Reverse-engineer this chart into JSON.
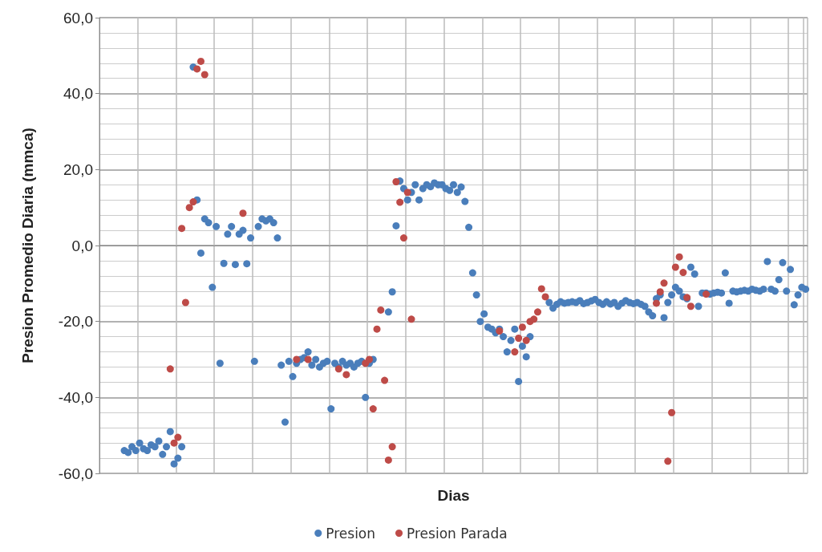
{
  "chart_data": {
    "type": "scatter",
    "xlabel": "Dias",
    "ylabel": "Presion Promedio Diaria (mmca)",
    "categories": [
      null,
      null,
      null,
      null,
      null,
      null,
      null,
      null,
      null,
      null,
      null,
      null,
      null,
      null,
      null,
      null,
      null,
      null,
      null,
      null,
      null,
      null,
      null,
      null,
      null,
      null,
      null,
      null,
      null,
      null,
      null,
      null,
      null,
      null,
      null,
      null,
      null,
      null,
      null,
      null,
      null,
      null,
      null,
      null,
      null,
      null,
      null,
      null,
      null,
      null,
      null,
      null,
      null,
      null,
      null,
      null,
      null,
      null,
      null,
      null,
      null,
      null,
      null,
      null,
      null,
      null,
      null,
      null,
      null,
      null,
      null,
      null,
      null,
      null,
      null,
      null,
      null,
      null,
      null,
      null,
      null,
      null,
      null,
      null,
      null,
      null,
      null,
      null,
      null,
      null,
      null,
      null,
      null,
      null,
      null,
      null,
      null,
      null,
      null,
      null,
      null,
      null,
      null,
      null,
      null,
      null,
      null,
      null,
      null,
      null,
      null,
      null,
      null,
      null,
      null,
      null,
      null,
      null,
      null,
      null,
      null,
      null,
      null,
      null,
      null,
      null,
      null,
      null,
      null,
      null,
      null,
      null,
      null,
      null,
      null,
      null,
      null,
      null,
      null,
      null,
      null,
      null,
      null,
      null,
      null,
      null,
      null,
      null,
      null,
      null,
      null,
      null,
      null,
      null,
      null,
      null,
      null,
      null,
      null,
      null,
      null,
      null,
      null,
      null,
      null,
      null,
      null,
      null,
      null,
      null,
      null,
      null,
      null,
      null,
      null,
      null,
      null,
      null,
      null,
      null,
      null,
      null,
      null,
      null,
      null
    ],
    "series": [
      {
        "name": "Presion",
        "color": "#4a7ebb",
        "values": [
          null,
          null,
          null,
          null,
          null,
          null,
          -54,
          -54.5,
          -53,
          -54,
          -52,
          -53.5,
          -54,
          -52.5,
          -53,
          -51.5,
          -55,
          -53,
          -49,
          -57.5,
          -56,
          -53,
          null,
          null,
          47,
          12,
          -2,
          7,
          6,
          -11,
          5,
          -31,
          -4.7,
          3,
          5,
          -5,
          3,
          4,
          -4.8,
          2,
          -30.5,
          5,
          7,
          6.5,
          7,
          6,
          2,
          -31.5,
          -46.5,
          -30.5,
          -34.5,
          -31,
          -30,
          -29.5,
          -28,
          -31.5,
          -30,
          -32,
          -31,
          -30.5,
          -43,
          -31,
          -32,
          -30.5,
          -31.5,
          -31,
          -32,
          -31,
          -30.5,
          -40,
          -31,
          -30,
          null,
          null,
          null,
          -17.5,
          -12.2,
          5.2,
          17,
          15,
          12,
          14,
          16,
          12,
          15,
          16,
          15.5,
          16.5,
          16,
          16,
          15,
          14.5,
          16,
          14,
          15.4,
          11.6,
          4.8,
          -7.2,
          -13,
          -20,
          -18,
          -21.5,
          -22,
          -23,
          -22,
          -24,
          -28,
          -25,
          -22,
          -35.8,
          -26.5,
          -29.3,
          -24,
          null,
          null,
          null,
          null,
          -15,
          -16.5,
          -15.5,
          -14.8,
          -15.2,
          -15,
          -14.8,
          -15,
          -14.5,
          -15.3,
          -15,
          -14.6,
          -14.2,
          -15,
          -15.5,
          -14.8,
          -15.4,
          -15,
          -16,
          -15.2,
          -14.5,
          -15,
          -15.3,
          -15,
          -15.5,
          -16,
          -17.5,
          -18.5,
          -14,
          -13,
          -19,
          -15,
          -13,
          -11,
          -12,
          -13.5,
          -14,
          -5.7,
          -7.5,
          -16,
          -12.5,
          -12.5,
          -12.8,
          -12.5,
          -12.3,
          -12.5,
          -7.2,
          -15.2,
          -12,
          -12.2,
          -12,
          -11.8,
          -12,
          -11.5,
          -11.8,
          -12,
          -11.5,
          -4.2,
          -11.5,
          -12,
          -9,
          -4.5,
          -12,
          -6.3,
          -15.6,
          -13,
          -11,
          -11.5
        ]
      },
      {
        "name": "Presion Parada",
        "color": "#be4b48",
        "values": [
          null,
          null,
          null,
          null,
          null,
          null,
          null,
          null,
          null,
          null,
          null,
          null,
          null,
          null,
          null,
          null,
          null,
          null,
          -32.5,
          -52,
          -50.5,
          4.5,
          -15,
          10,
          11.5,
          46.5,
          48.5,
          45,
          null,
          null,
          null,
          null,
          null,
          null,
          null,
          null,
          null,
          8.5,
          null,
          null,
          null,
          null,
          null,
          null,
          null,
          null,
          null,
          null,
          null,
          null,
          null,
          -30,
          null,
          null,
          -30,
          null,
          null,
          null,
          null,
          null,
          null,
          null,
          -32.5,
          null,
          -34,
          null,
          null,
          null,
          null,
          -31,
          -30,
          -43,
          -22,
          -17,
          -35.5,
          -56.5,
          -53,
          16.8,
          11.4,
          2,
          14,
          -19.4,
          null,
          null,
          null,
          null,
          null,
          null,
          null,
          null,
          null,
          null,
          null,
          null,
          null,
          null,
          null,
          null,
          null,
          null,
          null,
          null,
          null,
          null,
          -22.5,
          null,
          null,
          null,
          -28,
          -24.4,
          -21.5,
          -25,
          -20,
          -19.4,
          -17.5,
          -11.4,
          -13.5,
          null,
          null,
          null,
          null,
          null,
          null,
          null,
          null,
          null,
          null,
          null,
          null,
          null,
          null,
          null,
          null,
          null,
          null,
          null,
          null,
          null,
          null,
          null,
          null,
          null,
          null,
          null,
          null,
          -15.2,
          -12.2,
          -9.9,
          -56.8,
          -44,
          -5.7,
          -3,
          -7.1,
          -13.7,
          -16,
          null,
          null,
          null,
          -12.8,
          null,
          null,
          null,
          null,
          null,
          null,
          null,
          null,
          null,
          null,
          null,
          null,
          null,
          null,
          null,
          null,
          null,
          null,
          null,
          null,
          null,
          null,
          null,
          null,
          null,
          null
        ]
      }
    ],
    "ylim": [
      -60,
      60
    ],
    "yticks": [
      {
        "value": -60,
        "label": "-60,0"
      },
      {
        "value": -40,
        "label": "-40,0"
      },
      {
        "value": -20,
        "label": "-20,0"
      },
      {
        "value": 0,
        "label": "0,0"
      },
      {
        "value": 20,
        "label": "20,0"
      },
      {
        "value": 40,
        "label": "40,0"
      },
      {
        "value": 60,
        "label": "60,0"
      }
    ],
    "grid": true,
    "legend": "bottom",
    "marker": "circle"
  }
}
